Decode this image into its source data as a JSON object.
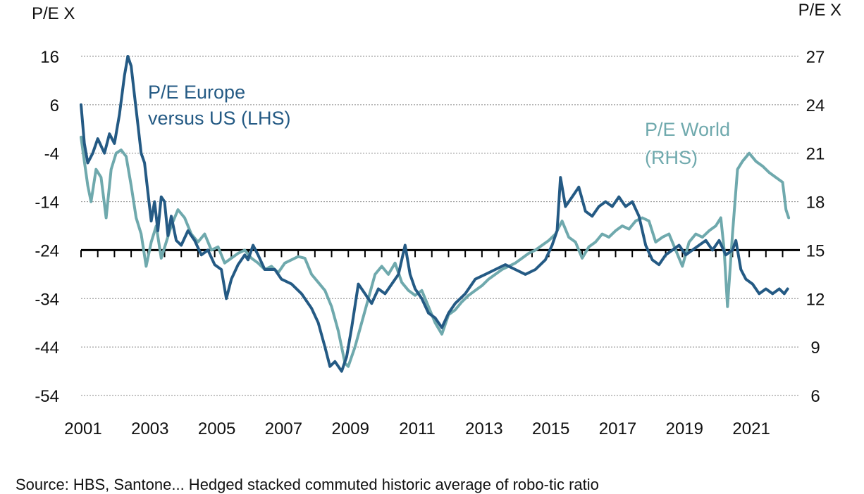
{
  "source_text": "Source: HBS, Santone... Hedged stacked commuted historic average of robo-tic ratio",
  "chart_data": {
    "type": "line",
    "left_axis_title": "P/E X",
    "right_axis_title": "P/E X",
    "left_ylim": [
      -54,
      16
    ],
    "right_ylim": [
      6,
      27
    ],
    "left_ticks": [
      16,
      6,
      -4,
      -14,
      -24,
      -34,
      -44,
      -54
    ],
    "right_ticks": [
      27,
      24,
      21,
      18,
      15,
      12,
      9,
      6
    ],
    "x_range": [
      2001,
      2022.2
    ],
    "x_ticks": [
      2001,
      2003,
      2005,
      2007,
      2009,
      2011,
      2013,
      2015,
      2017,
      2019,
      2021
    ],
    "baseline_left": -24,
    "grid": "dotted horizontal",
    "series": [
      {
        "name": "P/E Europe versus US (LHS)",
        "label_lines": [
          "P/E Europe",
          "versus US (LHS)"
        ],
        "axis": "left",
        "color": "#245a84",
        "points": [
          [
            2001.0,
            6
          ],
          [
            2001.1,
            -2
          ],
          [
            2001.2,
            -6
          ],
          [
            2001.35,
            -4
          ],
          [
            2001.5,
            -1
          ],
          [
            2001.7,
            -4
          ],
          [
            2001.85,
            0
          ],
          [
            2002.0,
            -2
          ],
          [
            2002.15,
            4
          ],
          [
            2002.3,
            12
          ],
          [
            2002.4,
            16
          ],
          [
            2002.5,
            14
          ],
          [
            2002.6,
            8
          ],
          [
            2002.7,
            2
          ],
          [
            2002.8,
            -4
          ],
          [
            2002.9,
            -6
          ],
          [
            2003.0,
            -12
          ],
          [
            2003.1,
            -18
          ],
          [
            2003.2,
            -14
          ],
          [
            2003.3,
            -20
          ],
          [
            2003.4,
            -13
          ],
          [
            2003.5,
            -14
          ],
          [
            2003.6,
            -21
          ],
          [
            2003.7,
            -17
          ],
          [
            2003.85,
            -22
          ],
          [
            2004.0,
            -23
          ],
          [
            2004.2,
            -20
          ],
          [
            2004.4,
            -22
          ],
          [
            2004.6,
            -25
          ],
          [
            2004.8,
            -24
          ],
          [
            2005.0,
            -27
          ],
          [
            2005.2,
            -28
          ],
          [
            2005.35,
            -34
          ],
          [
            2005.5,
            -30
          ],
          [
            2005.7,
            -27
          ],
          [
            2005.9,
            -25
          ],
          [
            2006.0,
            -26
          ],
          [
            2006.15,
            -23
          ],
          [
            2006.3,
            -25
          ],
          [
            2006.5,
            -28
          ],
          [
            2006.8,
            -28
          ],
          [
            2007.0,
            -30
          ],
          [
            2007.3,
            -31
          ],
          [
            2007.6,
            -33
          ],
          [
            2007.9,
            -36
          ],
          [
            2008.1,
            -39
          ],
          [
            2008.3,
            -44
          ],
          [
            2008.45,
            -48
          ],
          [
            2008.6,
            -47
          ],
          [
            2008.8,
            -49
          ],
          [
            2008.95,
            -46
          ],
          [
            2009.1,
            -40
          ],
          [
            2009.3,
            -31
          ],
          [
            2009.5,
            -33
          ],
          [
            2009.7,
            -35
          ],
          [
            2009.9,
            -32
          ],
          [
            2010.1,
            -33
          ],
          [
            2010.3,
            -31
          ],
          [
            2010.5,
            -29
          ],
          [
            2010.7,
            -23
          ],
          [
            2010.85,
            -29
          ],
          [
            2011.0,
            -32
          ],
          [
            2011.2,
            -34
          ],
          [
            2011.4,
            -37
          ],
          [
            2011.6,
            -38
          ],
          [
            2011.8,
            -40
          ],
          [
            2012.0,
            -37
          ],
          [
            2012.2,
            -35
          ],
          [
            2012.5,
            -33
          ],
          [
            2012.8,
            -30
          ],
          [
            2013.1,
            -29
          ],
          [
            2013.4,
            -28
          ],
          [
            2013.7,
            -27
          ],
          [
            2014.0,
            -28
          ],
          [
            2014.3,
            -29
          ],
          [
            2014.6,
            -28
          ],
          [
            2014.9,
            -26
          ],
          [
            2015.1,
            -23
          ],
          [
            2015.25,
            -20
          ],
          [
            2015.35,
            -9
          ],
          [
            2015.5,
            -15
          ],
          [
            2015.7,
            -13
          ],
          [
            2015.9,
            -11
          ],
          [
            2016.1,
            -16
          ],
          [
            2016.3,
            -17
          ],
          [
            2016.5,
            -15
          ],
          [
            2016.7,
            -14
          ],
          [
            2016.9,
            -15
          ],
          [
            2017.1,
            -13
          ],
          [
            2017.3,
            -15
          ],
          [
            2017.5,
            -14
          ],
          [
            2017.7,
            -17
          ],
          [
            2017.9,
            -23
          ],
          [
            2018.1,
            -26
          ],
          [
            2018.3,
            -27
          ],
          [
            2018.5,
            -25
          ],
          [
            2018.7,
            -24
          ],
          [
            2018.9,
            -23
          ],
          [
            2019.1,
            -25
          ],
          [
            2019.3,
            -24
          ],
          [
            2019.5,
            -23
          ],
          [
            2019.7,
            -22
          ],
          [
            2019.9,
            -24
          ],
          [
            2020.1,
            -22
          ],
          [
            2020.3,
            -25
          ],
          [
            2020.5,
            -24
          ],
          [
            2020.6,
            -22
          ],
          [
            2020.75,
            -28
          ],
          [
            2020.9,
            -30
          ],
          [
            2021.1,
            -31
          ],
          [
            2021.3,
            -33
          ],
          [
            2021.5,
            -32
          ],
          [
            2021.7,
            -33
          ],
          [
            2021.9,
            -32
          ],
          [
            2022.05,
            -33
          ],
          [
            2022.15,
            -32
          ]
        ]
      },
      {
        "name": "P/E World (RHS)",
        "label_lines": [
          "P/E World",
          "(RHS)"
        ],
        "axis": "right",
        "color": "#6fa9ad",
        "points": [
          [
            2001.0,
            22
          ],
          [
            2001.1,
            20.5
          ],
          [
            2001.2,
            19
          ],
          [
            2001.3,
            18
          ],
          [
            2001.45,
            20
          ],
          [
            2001.6,
            19.5
          ],
          [
            2001.75,
            17
          ],
          [
            2001.9,
            20
          ],
          [
            2002.05,
            21
          ],
          [
            2002.2,
            21.2
          ],
          [
            2002.35,
            20.8
          ],
          [
            2002.5,
            19
          ],
          [
            2002.65,
            17
          ],
          [
            2002.8,
            16
          ],
          [
            2002.95,
            14
          ],
          [
            2003.1,
            15.5
          ],
          [
            2003.25,
            16.5
          ],
          [
            2003.4,
            14.5
          ],
          [
            2003.55,
            15.5
          ],
          [
            2003.7,
            16.5
          ],
          [
            2003.9,
            17.5
          ],
          [
            2004.1,
            17
          ],
          [
            2004.3,
            16
          ],
          [
            2004.5,
            15.5
          ],
          [
            2004.7,
            16
          ],
          [
            2004.9,
            15
          ],
          [
            2005.1,
            15.2
          ],
          [
            2005.3,
            14.2
          ],
          [
            2005.5,
            14.5
          ],
          [
            2005.7,
            14.8
          ],
          [
            2005.9,
            15
          ],
          [
            2006.1,
            14.5
          ],
          [
            2006.3,
            14.2
          ],
          [
            2006.5,
            13.8
          ],
          [
            2006.7,
            14
          ],
          [
            2006.9,
            13.6
          ],
          [
            2007.1,
            14.2
          ],
          [
            2007.3,
            14.4
          ],
          [
            2007.5,
            14.6
          ],
          [
            2007.7,
            14.5
          ],
          [
            2007.9,
            13.5
          ],
          [
            2008.1,
            13
          ],
          [
            2008.3,
            12.5
          ],
          [
            2008.5,
            11.5
          ],
          [
            2008.7,
            10
          ],
          [
            2008.9,
            8
          ],
          [
            2009.0,
            7.8
          ],
          [
            2009.2,
            9
          ],
          [
            2009.4,
            10.5
          ],
          [
            2009.6,
            12
          ],
          [
            2009.8,
            13.5
          ],
          [
            2010.0,
            14
          ],
          [
            2010.2,
            13.5
          ],
          [
            2010.4,
            14.2
          ],
          [
            2010.6,
            13
          ],
          [
            2010.8,
            12.5
          ],
          [
            2011.0,
            12.2
          ],
          [
            2011.2,
            12.5
          ],
          [
            2011.4,
            11.5
          ],
          [
            2011.6,
            10.5
          ],
          [
            2011.8,
            9.8
          ],
          [
            2012.0,
            11
          ],
          [
            2012.2,
            11.3
          ],
          [
            2012.4,
            11.8
          ],
          [
            2012.6,
            12.2
          ],
          [
            2012.8,
            12.5
          ],
          [
            2013.0,
            12.8
          ],
          [
            2013.2,
            13.2
          ],
          [
            2013.4,
            13.5
          ],
          [
            2013.6,
            13.8
          ],
          [
            2013.8,
            14
          ],
          [
            2014.0,
            14.2
          ],
          [
            2014.2,
            14.5
          ],
          [
            2014.4,
            14.8
          ],
          [
            2014.6,
            15
          ],
          [
            2014.8,
            15.3
          ],
          [
            2015.0,
            15.6
          ],
          [
            2015.2,
            16
          ],
          [
            2015.4,
            16.8
          ],
          [
            2015.6,
            15.8
          ],
          [
            2015.8,
            15.5
          ],
          [
            2016.0,
            14.5
          ],
          [
            2016.2,
            15.2
          ],
          [
            2016.4,
            15.5
          ],
          [
            2016.6,
            16
          ],
          [
            2016.8,
            15.8
          ],
          [
            2017.0,
            16.2
          ],
          [
            2017.2,
            16.5
          ],
          [
            2017.4,
            16.3
          ],
          [
            2017.6,
            16.8
          ],
          [
            2017.8,
            17
          ],
          [
            2018.0,
            16.8
          ],
          [
            2018.2,
            15.5
          ],
          [
            2018.4,
            15.8
          ],
          [
            2018.6,
            16
          ],
          [
            2018.8,
            15
          ],
          [
            2019.0,
            14
          ],
          [
            2019.2,
            15.5
          ],
          [
            2019.4,
            16
          ],
          [
            2019.6,
            15.8
          ],
          [
            2019.8,
            16.2
          ],
          [
            2020.0,
            16.5
          ],
          [
            2020.15,
            17
          ],
          [
            2020.25,
            15
          ],
          [
            2020.35,
            11.5
          ],
          [
            2020.5,
            16
          ],
          [
            2020.65,
            20
          ],
          [
            2020.8,
            20.5
          ],
          [
            2021.0,
            21
          ],
          [
            2021.2,
            20.5
          ],
          [
            2021.4,
            20.2
          ],
          [
            2021.6,
            19.8
          ],
          [
            2021.8,
            19.5
          ],
          [
            2022.0,
            19.2
          ],
          [
            2022.1,
            17.5
          ],
          [
            2022.18,
            17
          ]
        ]
      }
    ]
  }
}
